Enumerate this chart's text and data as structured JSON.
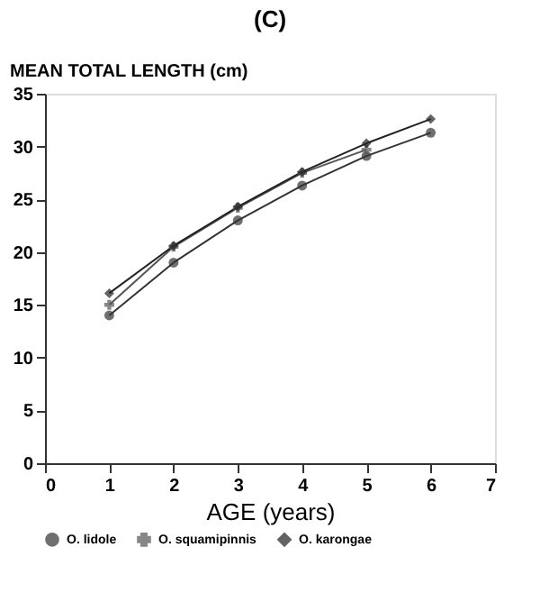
{
  "chart_data": {
    "type": "line",
    "title": "(C)",
    "ylabel": "MEAN TOTAL LENGTH (cm)",
    "xlabel": "AGE (years)",
    "x": [
      1,
      2,
      3,
      4,
      5,
      6
    ],
    "series": [
      {
        "name": "O. lidole",
        "color": "#333333",
        "marker": "circle",
        "values": [
          14.0,
          19.0,
          23.0,
          26.3,
          29.1,
          31.3
        ]
      },
      {
        "name": "O. squamipinnis",
        "color": "#555555",
        "marker": "cross",
        "values": [
          15.0,
          20.5,
          24.2,
          27.5,
          29.7,
          null
        ]
      },
      {
        "name": "O. karongae",
        "color": "#222222",
        "marker": "diamond",
        "values": [
          16.1,
          20.6,
          24.3,
          27.6,
          30.3,
          32.6
        ]
      }
    ],
    "xlim": [
      0,
      7
    ],
    "xticks": [
      0,
      1,
      2,
      3,
      4,
      5,
      6,
      7
    ],
    "ylim": [
      0,
      35
    ],
    "yticks": [
      0,
      5,
      10,
      15,
      20,
      25,
      30,
      35
    ],
    "grid": false,
    "legend": "bottom",
    "line_style": "solid"
  }
}
